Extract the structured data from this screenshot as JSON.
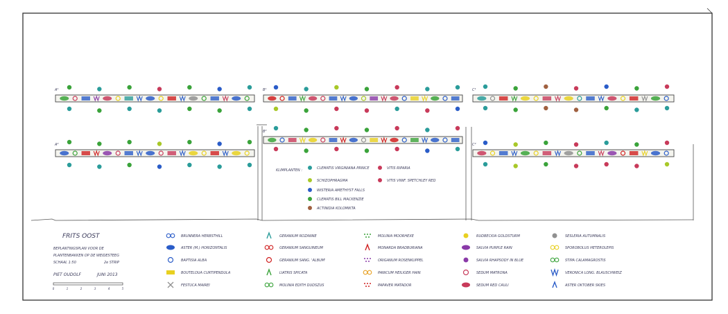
{
  "colors": {
    "teal": "#2a9c9a",
    "green": "#3aa33a",
    "blue": "#2a5cc8",
    "pink": "#c83a5a",
    "yellow": "#e8d020",
    "lime": "#a8c828",
    "brown": "#a06040",
    "purple": "#8a3aa8",
    "red": "#d02020",
    "grey": "#909090",
    "navy": "#1a2a80"
  },
  "strips": [
    {
      "label": "A¹",
      "pattern": "green-pink-blue-purple-pink-yellow-teal-blue-blue-yellow-red-blue-grey-green-blue-pink-blue-green"
    },
    {
      "label": "B¹",
      "pattern": "red-red-blue-green-pink-pink-blue-blue-blue-lime-purple-pink-pink-blue-yellow-yellow-green-blue-blue"
    },
    {
      "label": "C¹",
      "pattern": "teal-grey-red-green-yellow-yellow-pink-pink-yellow-teal-blue-blue-pink-yellow-red-grey-green-blue"
    },
    {
      "label": "A²",
      "pattern": "blue-green-red-red-purple-pink-blue-blue-blue-pink-pink-blue-yellow-yellow-red-blue-yellow-yellow"
    },
    {
      "label": "B²",
      "pattern": "green-blue-pink-yellow-yellow-pink-blue-red-blue-grey-yellow-red-red-blue-green-blue-blue-blue-blue"
    },
    {
      "label": "C²",
      "pattern": "pink-yellow-blue-blue-green-yellow-pink-blue-grey-green-blue-pink-purple-red-red-yellow-blue-blue"
    }
  ],
  "climber_dots": {
    "A¹_above": [
      "green",
      "teal",
      "green",
      "pink",
      "green",
      "blue",
      "teal"
    ],
    "A¹_below": [
      "teal",
      "green",
      "teal",
      "teal",
      "green",
      "green",
      "teal"
    ],
    "B¹_above": [
      "blue",
      "teal",
      "lime",
      "green",
      "pink",
      "teal",
      "teal"
    ],
    "B¹_below": [
      "lime",
      "green",
      "pink",
      "pink",
      "teal",
      "pink",
      "blue"
    ],
    "C¹_above": [
      "teal",
      "green",
      "brown",
      "pink",
      "blue",
      "green",
      "pink"
    ],
    "C¹_below": [
      "teal",
      "green",
      "brown",
      "brown",
      "green",
      "teal",
      "teal"
    ],
    "A²_above": [
      "green",
      "green",
      "green",
      "lime",
      "green",
      "blue",
      "green"
    ],
    "A²_below": [
      "teal",
      "teal",
      "green",
      "blue",
      "teal",
      "teal",
      "teal"
    ],
    "B²_above": [
      "teal",
      "green",
      "pink",
      "green",
      "pink",
      "teal",
      "pink"
    ],
    "B²_below": [
      "pink",
      "green",
      "pink",
      "green",
      "pink",
      "blue",
      "teal"
    ],
    "C²_above": [
      "blue",
      "lime",
      "green",
      "pink",
      "teal",
      "green",
      "pink"
    ],
    "C²_below": [
      "teal",
      "lime",
      "green",
      "pink",
      "pink",
      "pink",
      "lime"
    ]
  },
  "climbers": {
    "heading": "KLIMPLANTEN :",
    "items": [
      {
        "color": "teal",
        "name": "CLEMATIS VIRGINIANA PRINCE"
      },
      {
        "color": "lime",
        "name": "SCHIZOPHRAGMA"
      },
      {
        "color": "blue",
        "name": "WISTERIA AMETHYST FALLS"
      },
      {
        "color": "green",
        "name": "CLEMATIS BILL MACKENZIE"
      },
      {
        "color": "brown",
        "name": "ACTINIDIA KOLOMIKTA"
      },
      {
        "color": "pink",
        "name": "VITIS RIPARIA"
      },
      {
        "color": "pink",
        "name": "VITIS VINIF. SPETCHLEY RED"
      }
    ]
  },
  "legend": [
    {
      "symbol": "blue-circle-pair",
      "name": "BRUNNERA HERBSTHILL"
    },
    {
      "symbol": "blue-oval",
      "name": "ASTER (M.) HORIZONTALIS"
    },
    {
      "symbol": "blue-ring",
      "name": "BAPTISIA ALBA"
    },
    {
      "symbol": "yellow-hatch",
      "name": "BOUTELOUA CURTIPENDULA"
    },
    {
      "symbol": "grey-cross",
      "name": "FESTUCA MAIREI"
    },
    {
      "symbol": "teal-hook",
      "name": "GERANIUM ROZANNE"
    },
    {
      "symbol": "red-pair",
      "name": "GERANIUM SANGUINEUM"
    },
    {
      "symbol": "red-ring",
      "name": "GERANIUM SANG. 'ALBUM'"
    },
    {
      "symbol": "green-mark",
      "name": "LIATRIS SPICATA"
    },
    {
      "symbol": "green-cross-pair",
      "name": "MOLINIA EDITH DUDSZUS"
    },
    {
      "symbol": "green-dots",
      "name": "MOLINIA MOORHEXE"
    },
    {
      "symbol": "red-b",
      "name": "MONARDA BRADBURIANA"
    },
    {
      "symbol": "purple-dots",
      "name": "ORIGANUM ROSENKUPPEL"
    },
    {
      "symbol": "orange-pair",
      "name": "PANICUM HEILIGER HAIN"
    },
    {
      "symbol": "red-dots",
      "name": "PAPAVER MATADOR"
    },
    {
      "symbol": "yellow-circle",
      "name": "RUDBECKIA GOLDSTURM"
    },
    {
      "symbol": "purple-oval",
      "name": "SALVIA PURPLE RAIN"
    },
    {
      "symbol": "purple-small",
      "name": "SALVIA RHAPSODY IN BLUE"
    },
    {
      "symbol": "pink-ring",
      "name": "SEDUM MATRONA"
    },
    {
      "symbol": "pink-oval",
      "name": "SEDUM RED CAULI"
    },
    {
      "symbol": "grey-blob",
      "name": "SESLERIA AUTUMNALIS"
    },
    {
      "symbol": "yellow-pair",
      "name": "SPOROBOLUS HETEROLEPIS"
    },
    {
      "symbol": "green-x-pair",
      "name": "STIPA CALAMAGROSTIS"
    },
    {
      "symbol": "blue-vv",
      "name": "VERONICA LONG. BLAUSCHWEIZ"
    },
    {
      "symbol": "blue-a",
      "name": "ASTER OKTOBER SKIES"
    }
  ],
  "title_block": {
    "title": "FRITS OOST",
    "desc_1": "BEPLANTINGSPLAN VOOR DE",
    "desc_2": "PLANTENBAKKEN OP DE WEIDESTEEG",
    "desc_3": "SCHAAL 1:50",
    "desc_3b": "2e STRIP",
    "author": "PIET OUDOLF",
    "date": "JUNI 2013",
    "scale_ticks": [
      "0",
      "1",
      "2",
      "3",
      "4",
      "5"
    ]
  }
}
